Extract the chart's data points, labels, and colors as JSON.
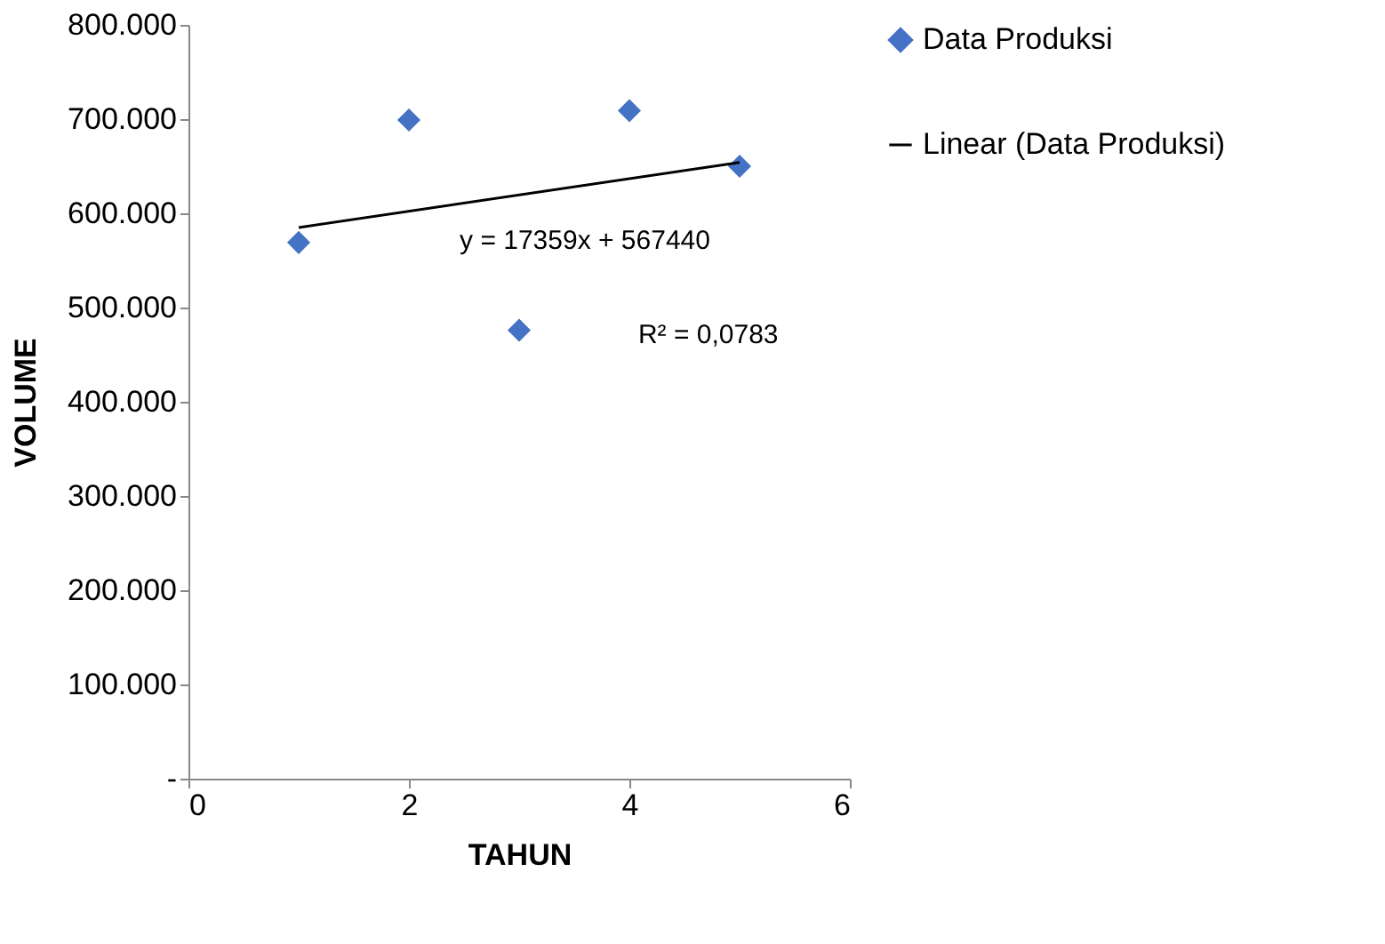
{
  "chart_data": {
    "type": "scatter",
    "xlabel": "TAHUN",
    "ylabel": "VOLUME",
    "xlim": [
      0,
      6
    ],
    "xticks": [
      0,
      2,
      4,
      6
    ],
    "ylim": [
      0,
      800000
    ],
    "yticks": [
      {
        "value": 0,
        "label": "-"
      },
      {
        "value": 100000,
        "label": "100.000"
      },
      {
        "value": 200000,
        "label": "200.000"
      },
      {
        "value": 300000,
        "label": "300.000"
      },
      {
        "value": 400000,
        "label": "400.000"
      },
      {
        "value": 500000,
        "label": "500.000"
      },
      {
        "value": 600000,
        "label": "600.000"
      },
      {
        "value": 700000,
        "label": "700.000"
      },
      {
        "value": 800000,
        "label": "800.000"
      }
    ],
    "series": [
      {
        "name": "Data Produksi",
        "color": "#4472c4",
        "marker": "diamond",
        "x": [
          1,
          2,
          3,
          4,
          5
        ],
        "values": [
          569000,
          699000,
          476000,
          709000,
          650000
        ]
      },
      {
        "name": "Linear (Data Produksi)",
        "type": "line",
        "color": "#000000",
        "line_style": "solid",
        "x": [
          1,
          5
        ],
        "values": [
          585000,
          654000
        ]
      }
    ],
    "annotations": [
      "y = 17359x + 567440",
      "R² = 0,0783"
    ],
    "grid": false,
    "legend": "right"
  }
}
